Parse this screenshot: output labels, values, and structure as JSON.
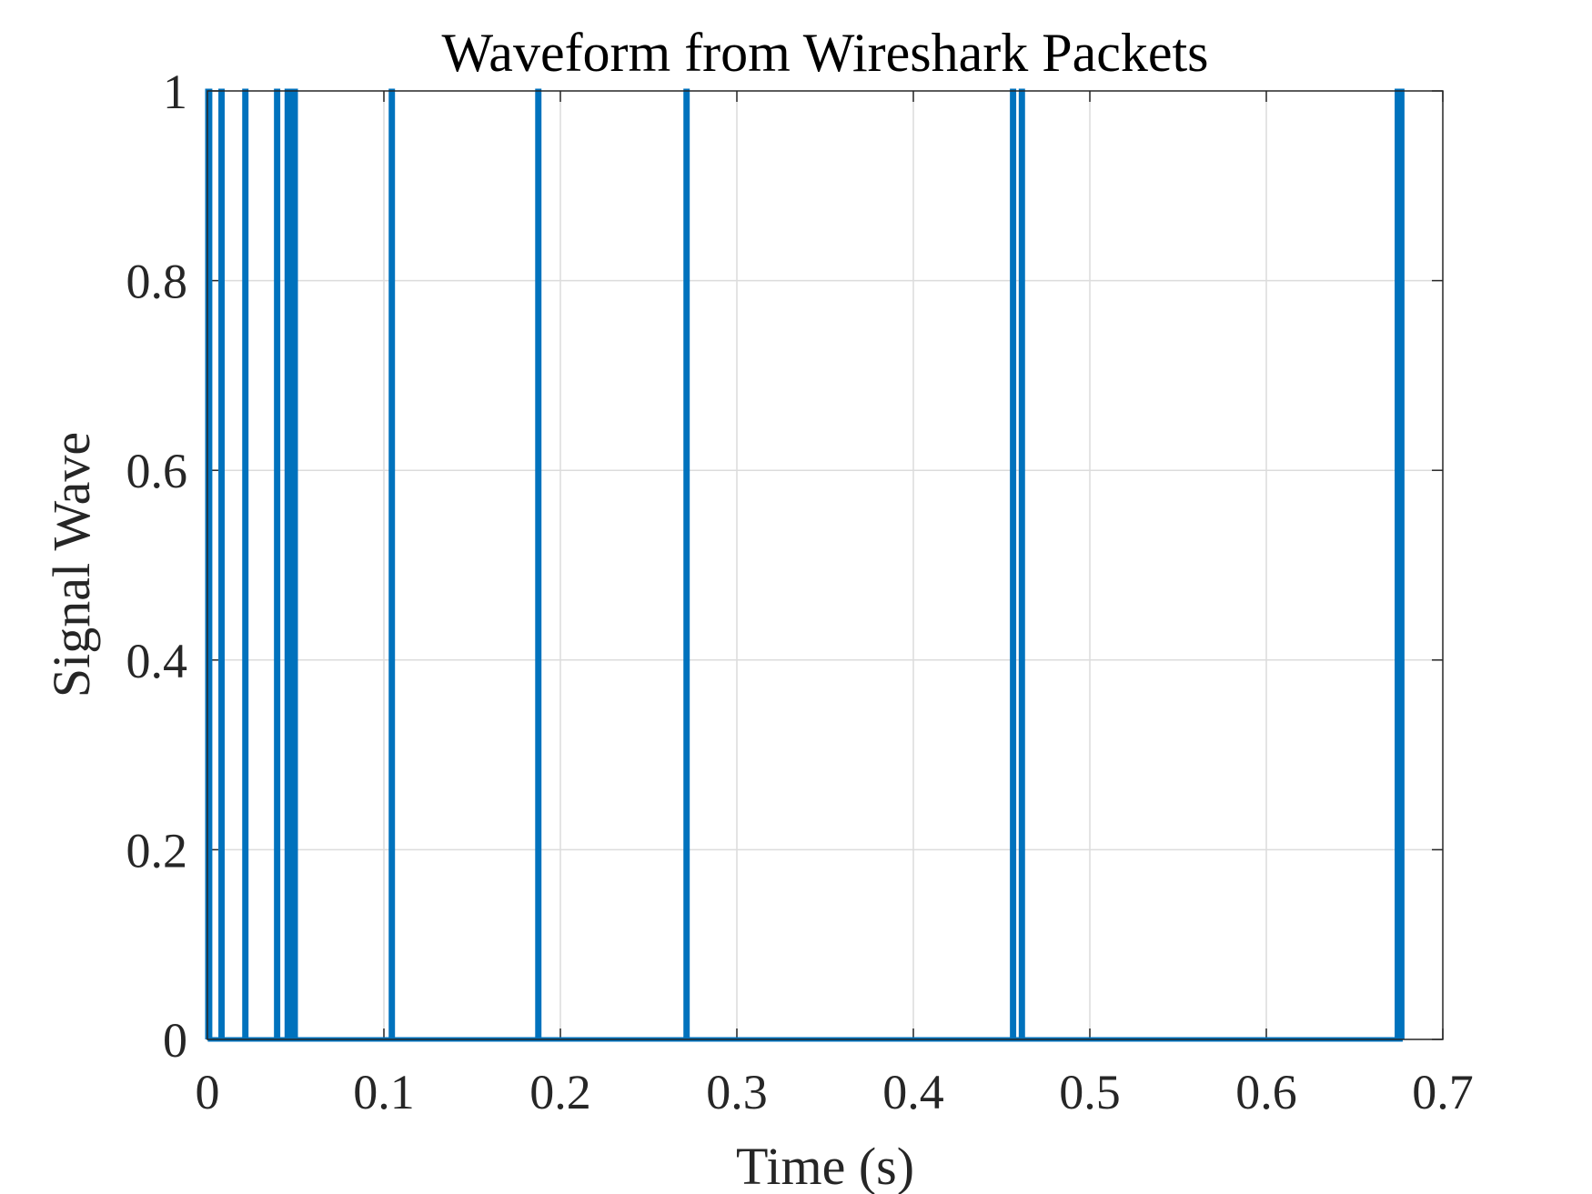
{
  "chart_data": {
    "type": "line",
    "title": "Waveform from Wireshark Packets",
    "xlabel": "Time (s)",
    "ylabel": "Signal Wave",
    "xlim": [
      0,
      0.7
    ],
    "ylim": [
      0,
      1
    ],
    "xticks": [
      0,
      0.1,
      0.2,
      0.3,
      0.4,
      0.5,
      0.6,
      0.7
    ],
    "xtick_labels": [
      "0",
      "0.1",
      "0.2",
      "0.3",
      "0.4",
      "0.5",
      "0.6",
      "0.7"
    ],
    "yticks": [
      0,
      0.2,
      0.4,
      0.6,
      0.8,
      1
    ],
    "ytick_labels": [
      "0",
      "0.2",
      "0.4",
      "0.6",
      "0.8",
      "1"
    ],
    "grid": true,
    "line_color": "#0072BD",
    "series": [
      {
        "pulses": [
          [
            0.0,
            0.0015
          ],
          [
            0.0075,
            0.0085
          ],
          [
            0.021,
            0.022
          ],
          [
            0.039,
            0.04
          ],
          [
            0.045,
            0.046
          ],
          [
            0.048,
            0.05
          ],
          [
            0.104,
            0.105
          ],
          [
            0.187,
            0.188
          ],
          [
            0.271,
            0.272
          ],
          [
            0.456,
            0.457
          ],
          [
            0.461,
            0.462
          ],
          [
            0.674,
            0.675
          ],
          [
            0.676,
            0.677
          ]
        ],
        "x_end": 0.677
      }
    ]
  }
}
